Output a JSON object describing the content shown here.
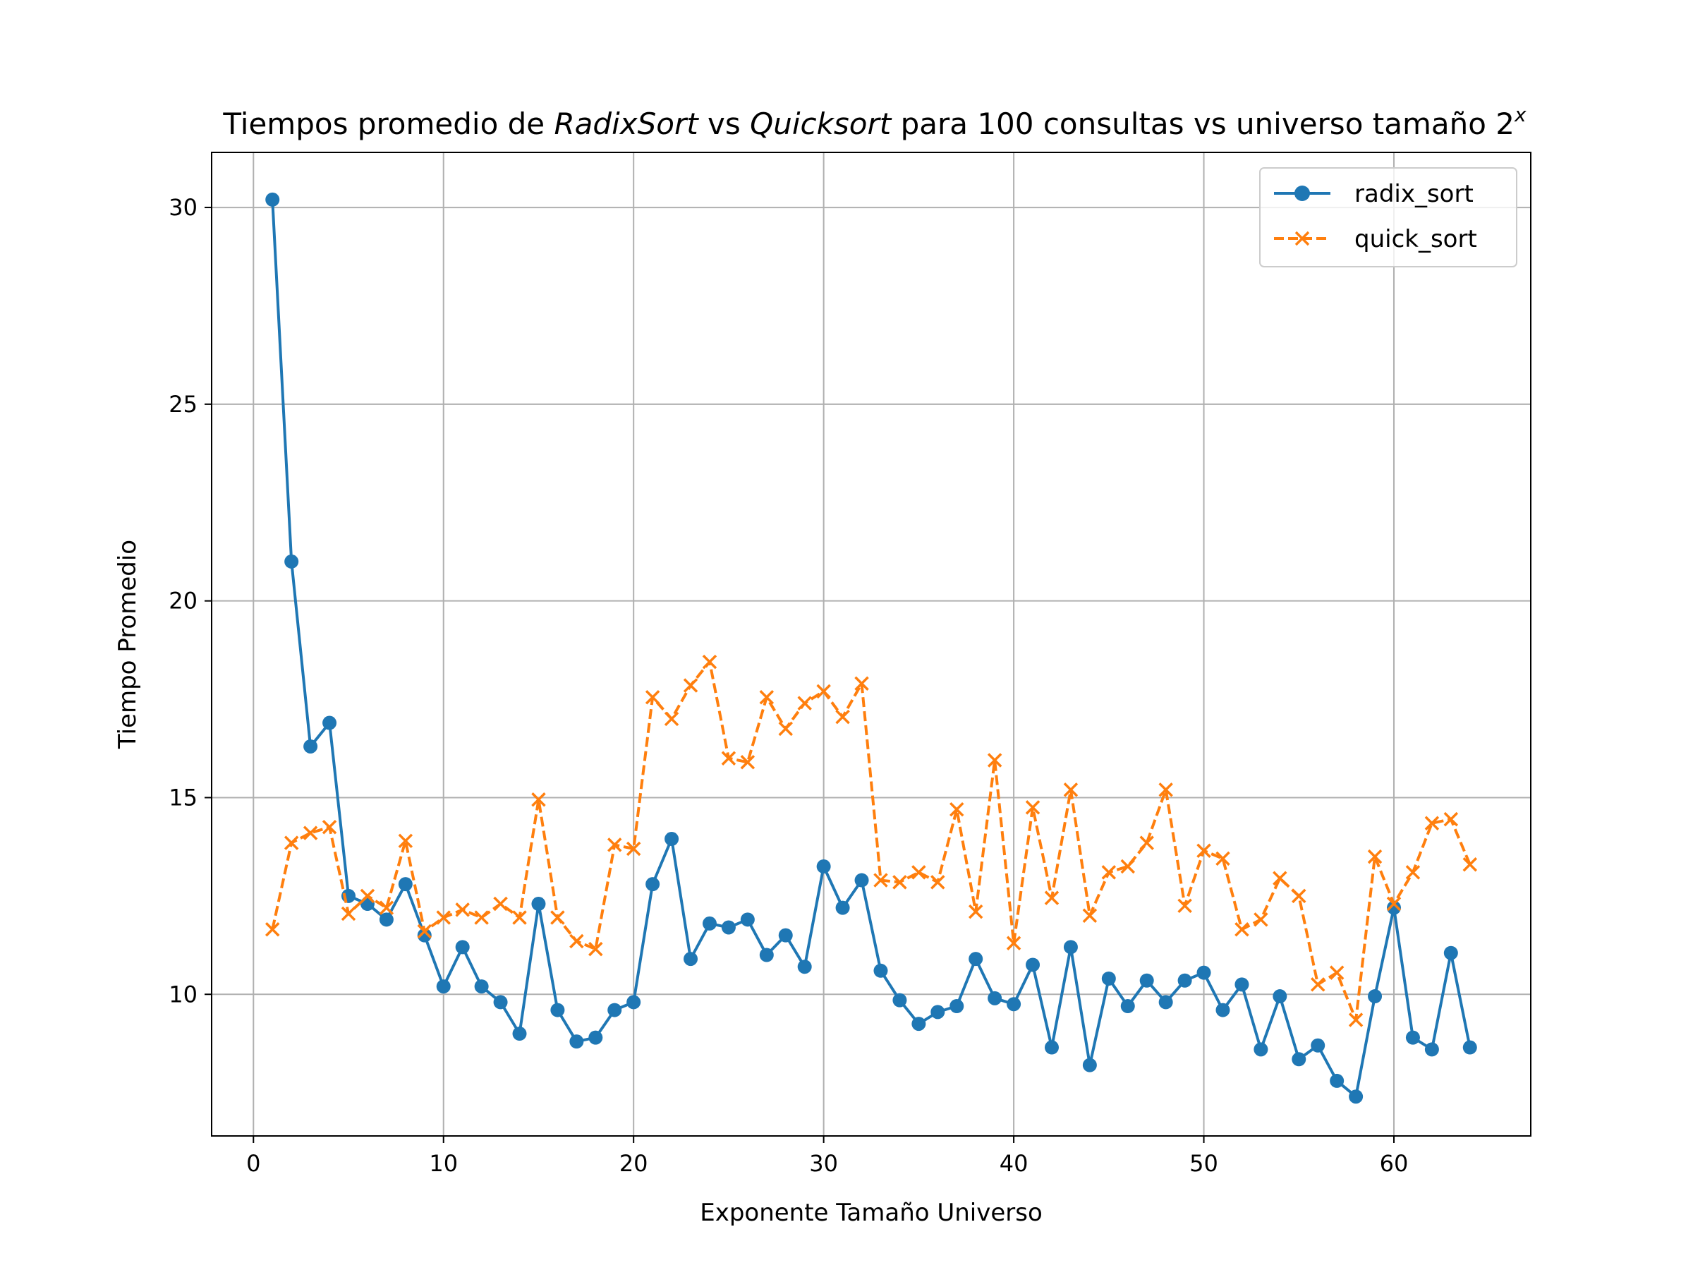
{
  "chart_data": {
    "type": "line",
    "title": {
      "prefix": "Tiempos promedio de ",
      "italic1": "RadixSort",
      "middle": " vs ",
      "italic2": "Quicksort",
      "suffix": " para 100 consultas vs universo tamaño 2",
      "superscript": "x"
    },
    "xlabel": "Exponente Tamaño Universo",
    "ylabel": "Tiempo Promedio",
    "xlim": [
      -2.2,
      67.2
    ],
    "ylim": [
      6.4,
      31.4
    ],
    "xticks": [
      0,
      10,
      20,
      30,
      40,
      50,
      60
    ],
    "yticks": [
      10,
      15,
      20,
      25,
      30
    ],
    "grid": true,
    "legend_position": "top-right",
    "x": [
      1,
      2,
      3,
      4,
      5,
      6,
      7,
      8,
      9,
      10,
      11,
      12,
      13,
      14,
      15,
      16,
      17,
      18,
      19,
      20,
      21,
      22,
      23,
      24,
      25,
      26,
      27,
      28,
      29,
      30,
      31,
      32,
      33,
      34,
      35,
      36,
      37,
      38,
      39,
      40,
      41,
      42,
      43,
      44,
      45,
      46,
      47,
      48,
      49,
      50,
      51,
      52,
      53,
      54,
      55,
      56,
      57,
      58,
      59,
      60,
      61,
      62,
      63,
      64
    ],
    "series": [
      {
        "name": "radix_sort",
        "color": "#1f77b4",
        "marker": "circle",
        "linestyle": "solid",
        "values": [
          30.2,
          21.0,
          16.3,
          16.9,
          12.5,
          12.3,
          11.9,
          12.8,
          11.5,
          10.2,
          11.2,
          10.2,
          9.8,
          9.0,
          12.3,
          9.6,
          8.8,
          8.9,
          9.6,
          9.8,
          12.8,
          13.95,
          10.9,
          11.8,
          11.7,
          11.9,
          11.0,
          11.5,
          10.7,
          13.25,
          12.2,
          12.9,
          10.6,
          9.85,
          9.25,
          9.55,
          9.7,
          10.9,
          9.9,
          9.75,
          10.75,
          8.65,
          11.2,
          8.2,
          10.4,
          9.7,
          10.35,
          9.8,
          10.35,
          10.55,
          9.6,
          10.25,
          8.6,
          9.95,
          8.35,
          8.7,
          7.8,
          7.4,
          9.95,
          12.2,
          8.9,
          8.6,
          11.05,
          8.65
        ]
      },
      {
        "name": "quick_sort",
        "color": "#ff7f0e",
        "marker": "x",
        "linestyle": "dashed",
        "values": [
          11.65,
          13.85,
          14.1,
          14.25,
          12.05,
          12.5,
          12.2,
          13.9,
          11.6,
          11.95,
          12.15,
          11.95,
          12.3,
          11.95,
          14.95,
          11.95,
          11.35,
          11.15,
          13.8,
          13.7,
          17.55,
          17.0,
          17.85,
          18.45,
          16.0,
          15.9,
          17.55,
          16.75,
          17.4,
          17.7,
          17.05,
          17.9,
          12.9,
          12.85,
          13.1,
          12.85,
          14.7,
          12.1,
          15.95,
          11.3,
          14.75,
          12.45,
          15.2,
          12.0,
          13.1,
          13.25,
          13.85,
          15.2,
          12.25,
          13.65,
          13.45,
          11.65,
          11.9,
          12.95,
          12.5,
          10.25,
          10.55,
          9.35,
          13.5,
          12.3,
          13.1,
          14.35,
          14.45,
          13.3
        ]
      }
    ]
  }
}
